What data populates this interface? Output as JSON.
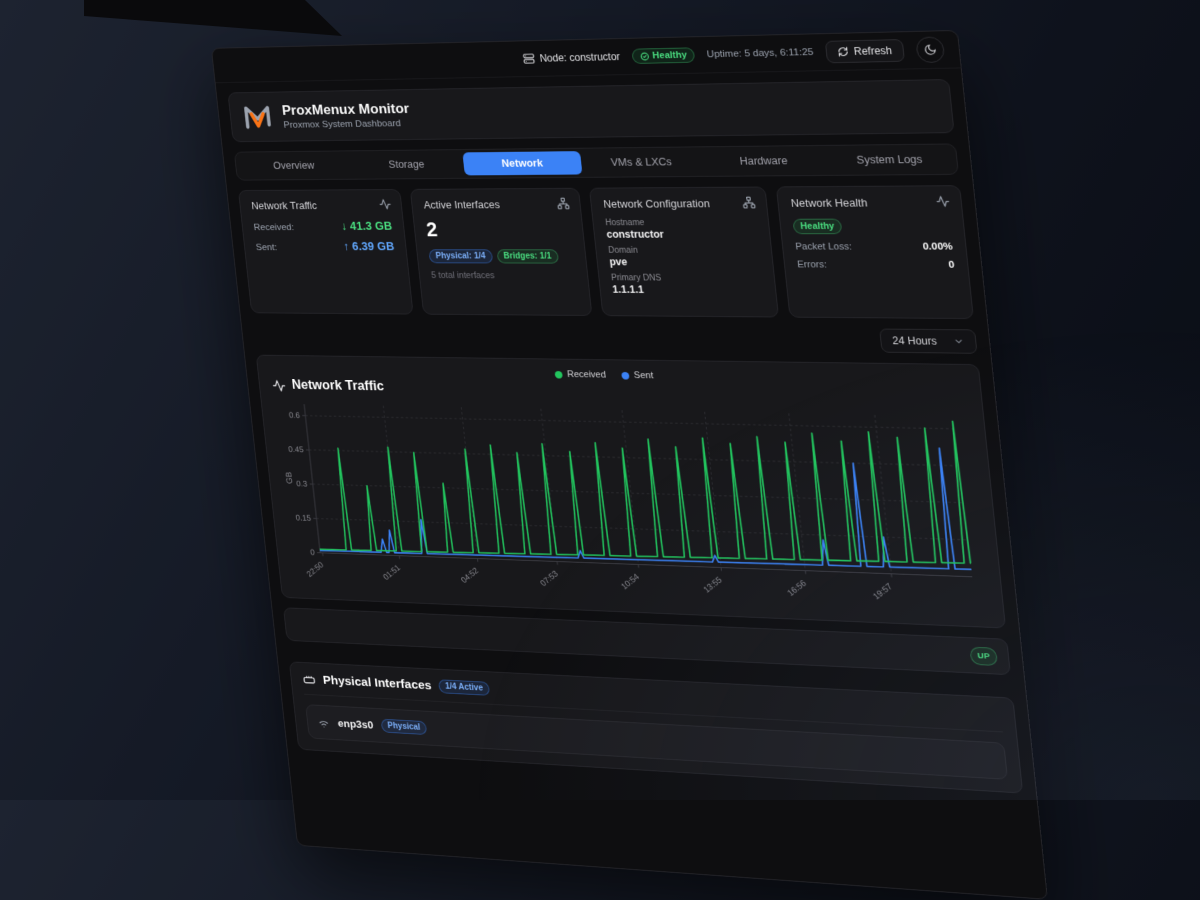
{
  "theme": {
    "accent_blue": "#3b82f6",
    "green": "#22c55e",
    "value_green": "#4ade80",
    "value_blue": "#60a5fa"
  },
  "topbar": {
    "node_label": "Node: constructor",
    "health_badge": "Healthy",
    "uptime": "Uptime: 5 days, 6:11:25",
    "refresh_label": "Refresh"
  },
  "header": {
    "title": "ProxMenux Monitor",
    "subtitle": "Proxmox System Dashboard"
  },
  "tabs": {
    "items": [
      "Overview",
      "Storage",
      "Network",
      "VMs & LXCs",
      "Hardware",
      "System Logs"
    ],
    "active": "Network"
  },
  "cards": {
    "traffic": {
      "title": "Network Traffic",
      "received_label": "Received:",
      "received_value": "↓ 41.3 GB",
      "sent_label": "Sent:",
      "sent_value": "↑ 6.39 GB"
    },
    "interfaces": {
      "title": "Active Interfaces",
      "count": "2",
      "badge_physical": "Physical: 1/4",
      "badge_bridges": "Bridges: 1/1",
      "note": "5 total interfaces"
    },
    "config": {
      "title": "Network Configuration",
      "hostname_label": "Hostname",
      "hostname_value": "constructor",
      "domain_label": "Domain",
      "domain_value": "pve",
      "dns_label": "Primary DNS",
      "dns_value": "1.1.1.1"
    },
    "health": {
      "title": "Network Health",
      "status": "Healthy",
      "packet_loss_label": "Packet Loss:",
      "packet_loss_value": "0.00%",
      "errors_label": "Errors:",
      "errors_value": "0"
    }
  },
  "range_select": {
    "value": "24 Hours"
  },
  "chart_section": {
    "title": "Network Traffic"
  },
  "status_row": {
    "badge": "UP"
  },
  "physical": {
    "title": "Physical Interfaces",
    "badge": "1/4 Active",
    "interfaces": [
      {
        "name": "enp3s0",
        "type_badge": "Physical"
      }
    ]
  },
  "chart_data": {
    "type": "line",
    "title": "Network Traffic",
    "xlabel": "",
    "ylabel": "GB",
    "ylim": [
      0,
      0.65
    ],
    "grid": true,
    "legend_position": "top-center",
    "legend": [
      "Received",
      "Sent"
    ],
    "colors": {
      "received": "#22c55e",
      "sent": "#3b82f6"
    },
    "yticks": [
      "0",
      "0.15",
      "0.3",
      "0.45",
      "0.6"
    ],
    "ytick_values": [
      0,
      0.15,
      0.3,
      0.45,
      0.6
    ],
    "xticks": [
      "22:50",
      "01:51",
      "04:52",
      "07:53",
      "10:54",
      "13:55",
      "16:56",
      "19:57"
    ],
    "xtick_step": 0.1257,
    "baseline": {
      "received": [
        0.015,
        0.055
      ],
      "sent": [
        0.01,
        0.03
      ]
    },
    "received_spikes": [
      [
        0.048,
        0.46
      ],
      [
        0.089,
        0.3
      ],
      [
        0.13,
        0.47
      ],
      [
        0.171,
        0.45
      ],
      [
        0.213,
        0.32
      ],
      [
        0.254,
        0.47
      ],
      [
        0.295,
        0.49
      ],
      [
        0.336,
        0.46
      ],
      [
        0.377,
        0.5
      ],
      [
        0.419,
        0.47
      ],
      [
        0.46,
        0.51
      ],
      [
        0.501,
        0.49
      ],
      [
        0.542,
        0.53
      ],
      [
        0.583,
        0.5
      ],
      [
        0.625,
        0.54
      ],
      [
        0.666,
        0.52
      ],
      [
        0.707,
        0.55
      ],
      [
        0.748,
        0.53
      ],
      [
        0.789,
        0.57
      ],
      [
        0.831,
        0.54
      ],
      [
        0.872,
        0.58
      ],
      [
        0.913,
        0.56
      ],
      [
        0.954,
        0.6
      ],
      [
        0.995,
        0.63
      ]
    ],
    "sent_spikes": [
      [
        0.105,
        0.07
      ],
      [
        0.118,
        0.11
      ],
      [
        0.171,
        0.16
      ],
      [
        0.419,
        0.05
      ],
      [
        0.625,
        0.05
      ],
      [
        0.789,
        0.13
      ],
      [
        0.845,
        0.45
      ],
      [
        0.878,
        0.15
      ],
      [
        0.972,
        0.52
      ]
    ]
  }
}
